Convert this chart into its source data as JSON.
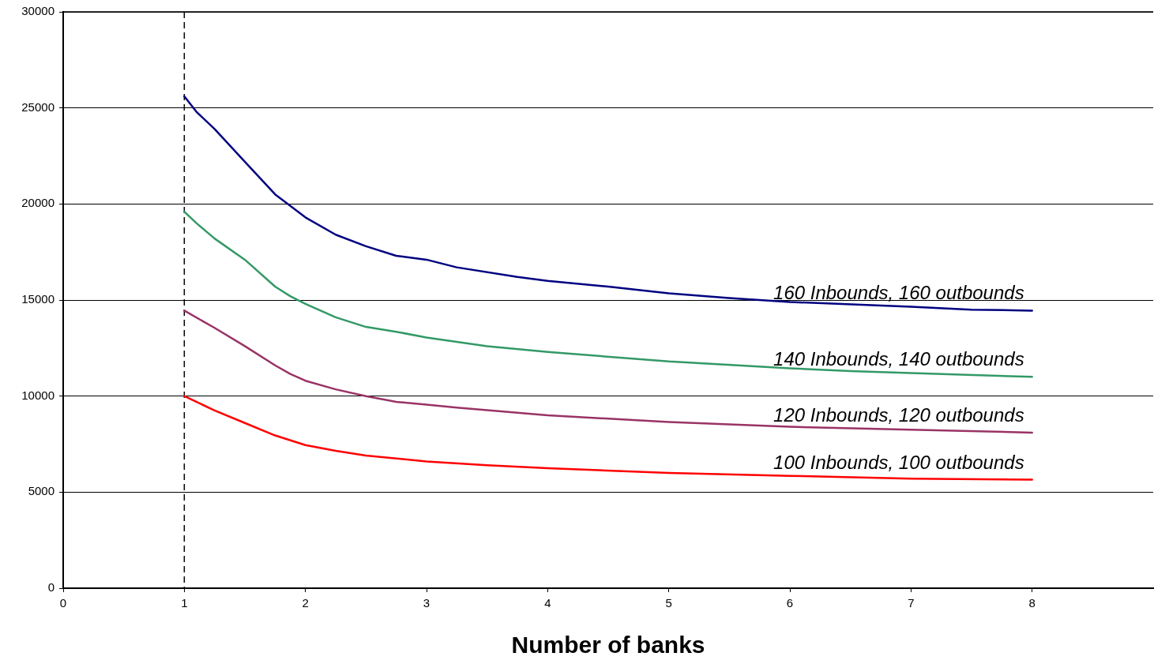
{
  "chart_data": {
    "type": "line",
    "xlabel": "Number of banks",
    "xlim": [
      0,
      9
    ],
    "xticks": [
      0,
      1,
      2,
      3,
      4,
      5,
      6,
      7,
      8
    ],
    "ylim": [
      0,
      30000
    ],
    "yticks": [
      0,
      5000,
      10000,
      15000,
      20000,
      25000,
      30000
    ],
    "grid": "y",
    "legend": false,
    "marker": "none",
    "line_style": "solid",
    "ref_lines": [
      {
        "axis": "x",
        "value": 1,
        "color": "#000000",
        "line_style": "dashed"
      }
    ],
    "series": [
      {
        "name": "160 Inbounds, 160 outbounds",
        "color": "#000080",
        "x": [
          1,
          1.1,
          1.25,
          1.5,
          1.75,
          2,
          2.25,
          2.5,
          2.75,
          3,
          3.25,
          3.75,
          4,
          4.5,
          5,
          5.5,
          6,
          7,
          7.5,
          8
        ],
        "values": [
          25600,
          24800,
          23900,
          22200,
          20500,
          19300,
          18400,
          17800,
          17300,
          17100,
          16700,
          16200,
          16000,
          15700,
          15350,
          15100,
          14900,
          14650,
          14500,
          14450
        ]
      },
      {
        "name": "140 Inbounds, 140 outbounds",
        "color": "#339966",
        "x": [
          1,
          1.1,
          1.25,
          1.5,
          1.75,
          1.875,
          2,
          2.25,
          2.5,
          2.75,
          3,
          3.5,
          4,
          5,
          6,
          6.5,
          7,
          8
        ],
        "values": [
          19600,
          19000,
          18200,
          17100,
          15700,
          15200,
          14800,
          14100,
          13600,
          13350,
          13050,
          12600,
          12300,
          11800,
          11450,
          11300,
          11200,
          11000
        ]
      },
      {
        "name": "120 Inbounds, 120 outbounds",
        "color": "#993366",
        "x": [
          1,
          1.25,
          1.5,
          1.75,
          1.875,
          2,
          2.25,
          2.5,
          2.75,
          3,
          3.25,
          4,
          5,
          6,
          7,
          8
        ],
        "values": [
          14450,
          13550,
          12600,
          11600,
          11150,
          10800,
          10350,
          10000,
          9700,
          9550,
          9400,
          9000,
          8650,
          8400,
          8250,
          8100
        ]
      },
      {
        "name": "100 Inbounds, 100 outbounds",
        "color": "#ff0000",
        "x": [
          1,
          1.25,
          1.5,
          1.75,
          2,
          2.25,
          2.5,
          3,
          3.5,
          4,
          5,
          6,
          7,
          8
        ],
        "values": [
          10000,
          9250,
          8600,
          7950,
          7450,
          7150,
          6900,
          6600,
          6400,
          6250,
          6000,
          5850,
          5700,
          5650
        ]
      }
    ]
  }
}
